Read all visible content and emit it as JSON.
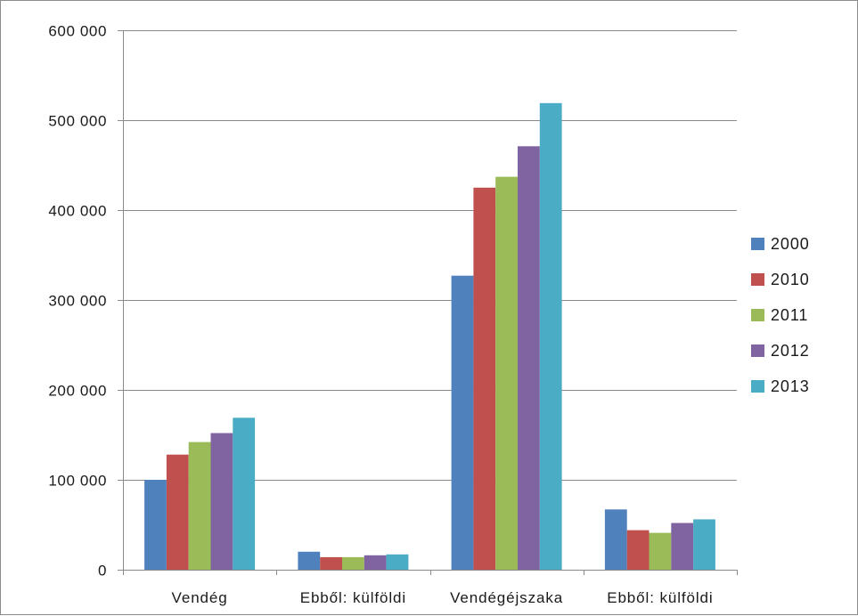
{
  "chart_data": {
    "type": "bar",
    "categories": [
      "Vendég",
      "Ebből: külföldi",
      "Vendégéjszaka",
      "Ebből: külföldi"
    ],
    "series": [
      {
        "name": "2000",
        "color": "#4f81bd",
        "values": [
          100000,
          20000,
          327000,
          67000
        ]
      },
      {
        "name": "2010",
        "color": "#c0504d",
        "values": [
          128000,
          14000,
          425000,
          44000
        ]
      },
      {
        "name": "2011",
        "color": "#9bbb59",
        "values": [
          142000,
          14000,
          437000,
          41000
        ]
      },
      {
        "name": "2012",
        "color": "#8064a2",
        "values": [
          152000,
          16000,
          471000,
          52000
        ]
      },
      {
        "name": "2013",
        "color": "#4bacc6",
        "values": [
          169000,
          17000,
          519000,
          56000
        ]
      }
    ],
    "yticks": [
      0,
      100000,
      200000,
      300000,
      400000,
      500000,
      600000
    ],
    "ytick_labels": [
      "0",
      "100 000",
      "200 000",
      "300 000",
      "400 000",
      "500 000",
      "600 000"
    ],
    "ylim": [
      0,
      600000
    ],
    "grid": true,
    "legend_position": "right",
    "title": "",
    "xlabel": "",
    "ylabel": ""
  }
}
